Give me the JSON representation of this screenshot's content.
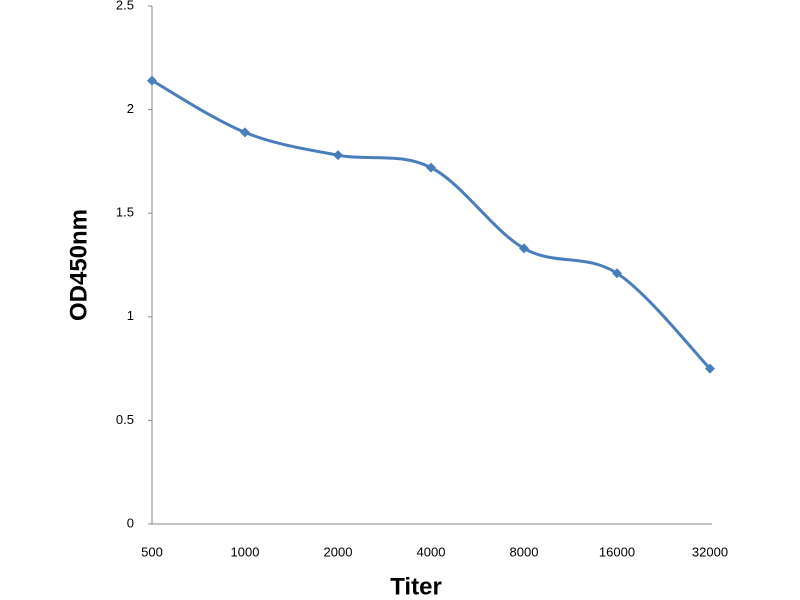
{
  "chart_data": {
    "type": "line",
    "x_label": "Titer",
    "y_label": "OD450nm",
    "categories": [
      "500",
      "1000",
      "2000",
      "4000",
      "8000",
      "16000",
      "32000"
    ],
    "series": [
      {
        "name": "OD450nm",
        "color": "#4a7ebb",
        "values": [
          2.14,
          1.89,
          1.78,
          1.72,
          1.33,
          1.21,
          0.75
        ]
      }
    ],
    "ylim": [
      0,
      2.5
    ],
    "yticks": [
      0,
      0.5,
      1,
      1.5,
      2,
      2.5
    ],
    "grid": false
  }
}
